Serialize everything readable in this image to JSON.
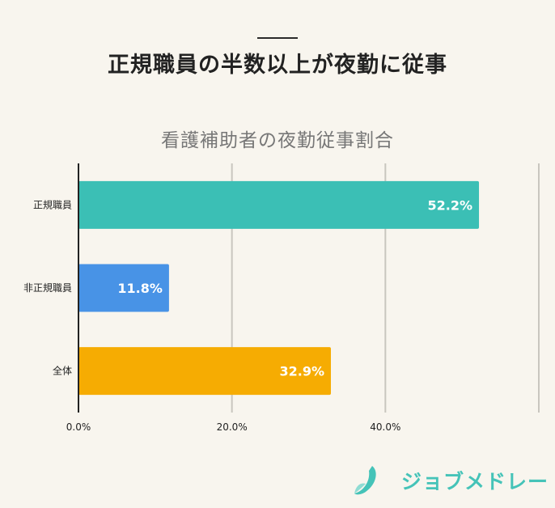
{
  "headline": "正規職員の半数以上が夜勤に従事",
  "logo_text": "ジョブメドレー",
  "chart_data": {
    "type": "bar",
    "orientation": "horizontal",
    "title": "看護補助者の夜勤従事割合",
    "xlabel": "",
    "ylabel": "",
    "xlim": [
      0,
      60
    ],
    "x_ticks": [
      0,
      20,
      40,
      60
    ],
    "x_tick_labels": [
      "0.0%",
      "20.0%",
      "40.0%",
      ""
    ],
    "grid": true,
    "categories": [
      "正規職員",
      "非正規職員",
      "全体"
    ],
    "values": [
      52.2,
      11.8,
      32.9
    ],
    "value_labels": [
      "52.2%",
      "11.8%",
      "32.9%"
    ],
    "colors": [
      "#3bbfb5",
      "#4893e6",
      "#f6ac02"
    ]
  }
}
